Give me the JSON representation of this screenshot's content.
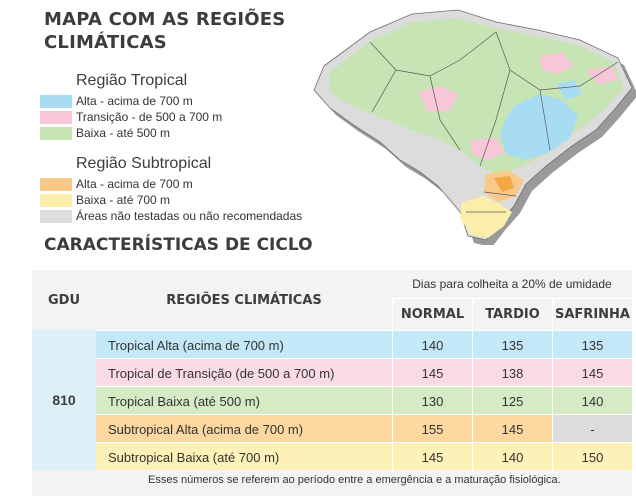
{
  "title_line1": "MAPA COM AS REGIÕES",
  "title_line2": "CLIMÁTICAS",
  "legend": {
    "tropical_title": "Região Tropical",
    "tropical_items": [
      {
        "label": "Alta - acima de 700 m",
        "color": "#a8dcf2"
      },
      {
        "label": "Transição - de 500 a 700 m",
        "color": "#f7c6d7"
      },
      {
        "label": "Baixa - até 500 m",
        "color": "#c6e4b4"
      }
    ],
    "subtropical_title": "Região Subtropical",
    "subtropical_items": [
      {
        "label": "Alta - acima de 700 m",
        "color": "#f9c98a"
      },
      {
        "label": "Baixa - até 700 m",
        "color": "#fbeeaa"
      },
      {
        "label": "Áreas não testadas ou não recomendadas",
        "color": "#dcdcdc"
      }
    ]
  },
  "section_title": "CARACTERÍSTICAS DE CICLO",
  "table": {
    "col_gdu": "GDU",
    "col_regions": "REGIÕES CLIMÁTICAS",
    "days_header": "Dias para colheita a 20% de umidade",
    "cols": [
      "NORMAL",
      "TARDIO",
      "SAFRINHA"
    ],
    "gdu_value": "810",
    "rows": [
      {
        "region": "Tropical Alta (acima de 700 m)",
        "values": [
          "140",
          "135",
          "135"
        ],
        "color": "#c3e8f7"
      },
      {
        "region": "Tropical de Transição (de 500 a 700 m)",
        "values": [
          "145",
          "138",
          "145"
        ],
        "color": "#fadbe5"
      },
      {
        "region": "Tropical Baixa (até 500 m)",
        "values": [
          "130",
          "125",
          "140"
        ],
        "color": "#d4ebc6"
      },
      {
        "region": "Subtropical Alta (acima de 700 m)",
        "values": [
          "155",
          "145",
          "-"
        ],
        "color": "#fcd79f"
      },
      {
        "region": "Subtropical Baixa (até 700 m)",
        "values": [
          "145",
          "140",
          "150"
        ],
        "color": "#fdf1b8"
      }
    ],
    "safrinha_na_color": "#dcdcdc"
  },
  "footnote": "Esses números se referem ao período entre a emergência e a maturação fisiológica."
}
